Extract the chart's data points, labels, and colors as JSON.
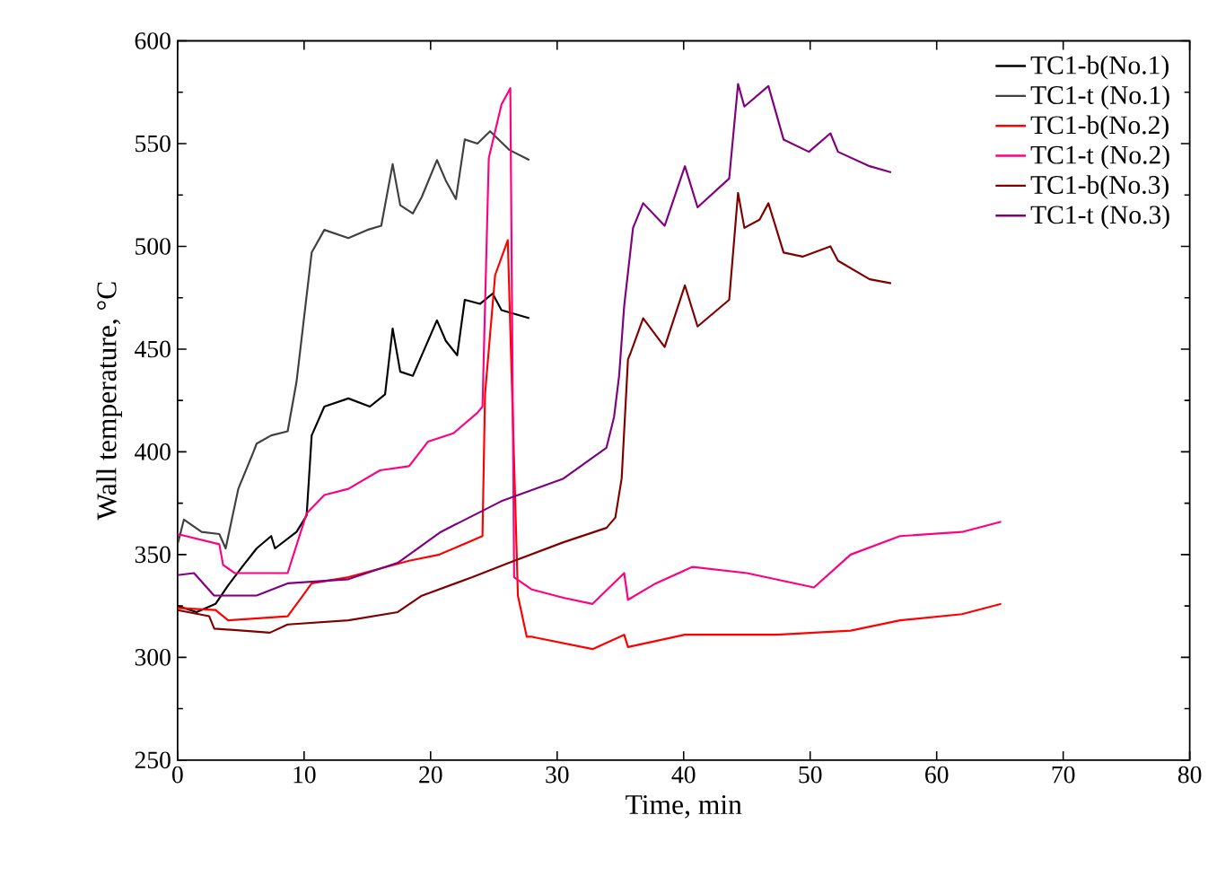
{
  "chart_data": {
    "type": "line",
    "xlabel": "Time, min",
    "ylabel": "Wall temperature, °C",
    "xlim": [
      0,
      80
    ],
    "xticks": [
      0,
      10,
      20,
      30,
      40,
      50,
      60,
      70,
      80
    ],
    "ylim": [
      250,
      600
    ],
    "yticks": [
      250,
      300,
      350,
      400,
      450,
      500,
      550,
      600
    ],
    "legend": "top right",
    "grid": false,
    "marker": "none",
    "line_style": "solid",
    "series": [
      {
        "name": "TC1-b(No.1)",
        "color": "#000000",
        "x": [
          0,
          1.5,
          3,
          4,
          5.1,
          6.25,
          7.4,
          7.7,
          9.4,
          10.2,
          10.6,
          11.6,
          13.5,
          15.2,
          16.4,
          17,
          17.6,
          18.6,
          20.5,
          21.2,
          22.1,
          22.7,
          23.9,
          24.9,
          25.6,
          27.8
        ],
        "values": [
          325,
          322,
          326,
          335,
          344,
          353,
          359,
          353,
          361,
          369,
          408,
          422,
          426,
          422,
          428,
          460,
          439,
          437,
          464,
          454,
          447,
          474,
          472,
          477,
          469,
          465
        ]
      },
      {
        "name": "TC1-t (No.1)",
        "color": "#404040",
        "x": [
          0,
          0.5,
          1.9,
          3.3,
          3.8,
          4.8,
          6,
          6.25,
          7.4,
          8.7,
          9.4,
          10.6,
          11.6,
          13.5,
          15,
          16.1,
          17,
          17.6,
          18.6,
          19.3,
          20.5,
          21.2,
          22,
          22.7,
          23.7,
          24.7,
          26.2,
          27.8
        ],
        "values": [
          355,
          367,
          361,
          360,
          353,
          382,
          400,
          404,
          408,
          410,
          434,
          497,
          508,
          504,
          508,
          510,
          540,
          520,
          516,
          524,
          542,
          532,
          523,
          552,
          550,
          556,
          547,
          542
        ]
      },
      {
        "name": "TC1-b(No.2)",
        "color": "#ff0000",
        "x": [
          0,
          3,
          4,
          8.7,
          9.9,
          10.6,
          13.5,
          18.3,
          20.7,
          24.1,
          24.3,
          25.1,
          26.1,
          26.9,
          27.6,
          28,
          32.8,
          35.3,
          35.6,
          40.1,
          47.4,
          53.2,
          57.1,
          62,
          65.1
        ],
        "values": [
          324,
          323,
          318,
          320,
          330,
          336,
          339,
          347,
          350,
          359,
          428,
          486,
          503,
          330,
          310,
          310,
          304,
          311,
          305,
          311,
          311,
          313,
          318,
          321,
          326
        ]
      },
      {
        "name": "TC1-t (No.2)",
        "color": "#ff0080",
        "x": [
          0,
          3.3,
          3.6,
          4.5,
          8.7,
          10.2,
          11.6,
          13.5,
          16,
          18.3,
          19.8,
          21.8,
          23.7,
          24.1,
          24.6,
          25.6,
          26.3,
          26.6,
          28,
          30.5,
          32.8,
          35.3,
          35.6,
          37.8,
          40.7,
          45,
          50.3,
          53.2,
          57.1,
          62,
          65.1
        ],
        "values": [
          360,
          355,
          345,
          341,
          341,
          370,
          379,
          382,
          391,
          393,
          405,
          409,
          419,
          422,
          543,
          569,
          577,
          339,
          333,
          329,
          326,
          341,
          328,
          336,
          344,
          341,
          334,
          350,
          359,
          361,
          366
        ]
      },
      {
        "name": "TC1-b(No.3)",
        "color": "#800000",
        "x": [
          0,
          2.5,
          2.9,
          7.3,
          8.7,
          13.5,
          17.4,
          19.3,
          23.3,
          26.2,
          30.5,
          33.9,
          34.6,
          35.1,
          35.6,
          35.8,
          36.8,
          38.5,
          40.1,
          41.1,
          43.6,
          44.3,
          44.8,
          46,
          46.7,
          47.9,
          49.4,
          51.6,
          52.2,
          54.7,
          56.4
        ],
        "values": [
          323,
          320,
          314,
          312,
          316,
          318,
          322,
          330,
          339,
          346,
          356,
          363,
          368,
          387,
          445,
          448,
          465,
          451,
          481,
          461,
          474,
          526,
          509,
          513,
          521,
          497,
          495,
          500,
          493,
          484,
          482
        ]
      },
      {
        "name": "TC1-t (No.3)",
        "color": "#800080",
        "x": [
          0,
          1.3,
          2.9,
          6.2,
          8.7,
          13.5,
          17.4,
          20.8,
          25.6,
          30.5,
          33.9,
          34.5,
          34.9,
          35.3,
          36,
          36.8,
          38.5,
          40.1,
          41.1,
          43.6,
          44.3,
          44.8,
          46.7,
          47.9,
          49.9,
          51.6,
          52.2,
          54.7,
          56.4
        ],
        "values": [
          340,
          341,
          330,
          330,
          336,
          338,
          346,
          361,
          376,
          387,
          402,
          417,
          437,
          471,
          509,
          521,
          510,
          539,
          519,
          533,
          579,
          568,
          578,
          552,
          546,
          555,
          546,
          539,
          536
        ]
      }
    ]
  }
}
